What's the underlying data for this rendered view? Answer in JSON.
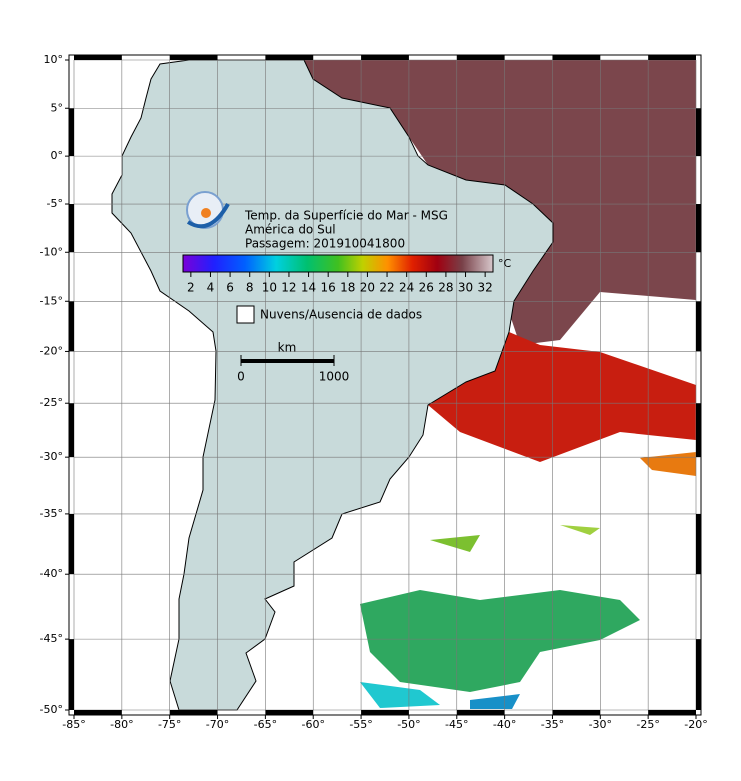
{
  "map": {
    "xlim": [
      -85,
      -20
    ],
    "ylim": [
      -50,
      10
    ],
    "projection": "mercator",
    "grid": true,
    "xticks": [
      {
        "value": -85,
        "label": "-85°"
      },
      {
        "value": -80,
        "label": "-80°"
      },
      {
        "value": -75,
        "label": "-75°"
      },
      {
        "value": -70,
        "label": "-70°"
      },
      {
        "value": -65,
        "label": "-65°"
      },
      {
        "value": -60,
        "label": "-60°"
      },
      {
        "value": -55,
        "label": "-55°"
      },
      {
        "value": -50,
        "label": "-50°"
      },
      {
        "value": -45,
        "label": "-45°"
      },
      {
        "value": -40,
        "label": "-40°"
      },
      {
        "value": -35,
        "label": "-35°"
      },
      {
        "value": -30,
        "label": "-30°"
      },
      {
        "value": -25,
        "label": "-25°"
      },
      {
        "value": -20,
        "label": "-20°"
      }
    ],
    "yticks": [
      {
        "value": 10,
        "label": "10°"
      },
      {
        "value": 5,
        "label": "5°"
      },
      {
        "value": 0,
        "label": "0°"
      },
      {
        "value": -5,
        "label": "-5°"
      },
      {
        "value": -10,
        "label": "-10°"
      },
      {
        "value": -15,
        "label": "-15°"
      },
      {
        "value": -20,
        "label": "-20°"
      },
      {
        "value": -25,
        "label": "-25°"
      },
      {
        "value": -30,
        "label": "-30°"
      },
      {
        "value": -35,
        "label": "-35°"
      },
      {
        "value": -40,
        "label": "-40°"
      },
      {
        "value": -45,
        "label": "-45°"
      },
      {
        "value": -50,
        "label": "-50°"
      }
    ]
  },
  "legend": {
    "title": "Temp. da Superfície do Mar - MSG",
    "region": "América do Sul",
    "pass": "Passagem: 201910041800",
    "colorbar": {
      "lim": [
        1.2,
        32.8
      ],
      "ticks": [
        2,
        4,
        6,
        8,
        10,
        12,
        14,
        16,
        18,
        20,
        22,
        24,
        26,
        28,
        30,
        32
      ],
      "unit": "°C"
    },
    "no_data": "Nuvens/Ausencia de dados"
  },
  "scale_bar": {
    "unit": "km",
    "lim": [
      0,
      1000
    ],
    "ticks": [
      0,
      1000
    ]
  }
}
